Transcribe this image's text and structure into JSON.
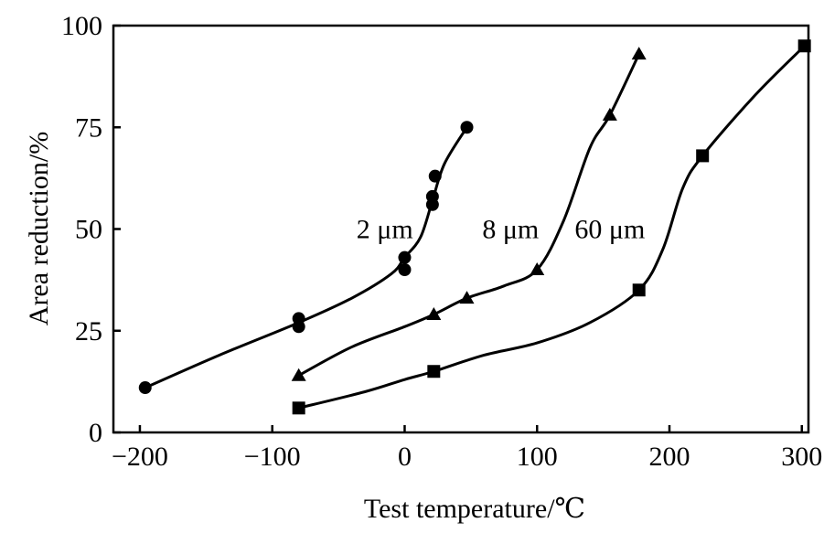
{
  "chart_data": {
    "type": "line",
    "title": "",
    "xlabel": "Test temperature/℃",
    "ylabel": "Area reduction/%",
    "xlim": [
      -220,
      305
    ],
    "ylim": [
      0,
      100
    ],
    "x_ticks": [
      -200,
      -100,
      0,
      100,
      200,
      300
    ],
    "x_tick_labels": [
      "−200",
      "−100",
      "0",
      "100",
      "200",
      "300"
    ],
    "y_ticks": [
      0,
      25,
      50,
      75,
      100
    ],
    "y_tick_labels": [
      "0",
      "25",
      "50",
      "75",
      "100"
    ],
    "grid": false,
    "legend": "none",
    "series": [
      {
        "name": "2 μm",
        "marker": "circle",
        "points": [
          [
            -196,
            11
          ],
          [
            -80,
            26
          ],
          [
            -80,
            28
          ],
          [
            0,
            40
          ],
          [
            0,
            43
          ],
          [
            21,
            56
          ],
          [
            21,
            58
          ],
          [
            23,
            63
          ],
          [
            47,
            75
          ]
        ],
        "curve": [
          [
            -196,
            11
          ],
          [
            -140,
            19
          ],
          [
            -80,
            27
          ],
          [
            -40,
            33
          ],
          [
            -10,
            39
          ],
          [
            0,
            43
          ],
          [
            12,
            48
          ],
          [
            21,
            57
          ],
          [
            30,
            66
          ],
          [
            47,
            75
          ]
        ]
      },
      {
        "name": "8 μm",
        "marker": "triangle",
        "points": [
          [
            -80,
            14
          ],
          [
            22,
            29
          ],
          [
            47,
            33
          ],
          [
            100,
            40
          ],
          [
            155,
            78
          ],
          [
            177,
            93
          ]
        ],
        "curve": [
          [
            -80,
            14
          ],
          [
            -40,
            21
          ],
          [
            0,
            26
          ],
          [
            22,
            29
          ],
          [
            47,
            33
          ],
          [
            75,
            36
          ],
          [
            100,
            40
          ],
          [
            120,
            52
          ],
          [
            140,
            70
          ],
          [
            155,
            78
          ],
          [
            177,
            93
          ]
        ]
      },
      {
        "name": "60 μm",
        "marker": "square",
        "points": [
          [
            -80,
            6
          ],
          [
            22,
            15
          ],
          [
            177,
            35
          ],
          [
            225,
            68
          ],
          [
            302,
            95
          ]
        ],
        "curve": [
          [
            -80,
            6
          ],
          [
            -30,
            10
          ],
          [
            0,
            13
          ],
          [
            22,
            15
          ],
          [
            60,
            19
          ],
          [
            100,
            22
          ],
          [
            140,
            27
          ],
          [
            177,
            35
          ],
          [
            195,
            45
          ],
          [
            210,
            60
          ],
          [
            225,
            68
          ],
          [
            265,
            83
          ],
          [
            302,
            95
          ]
        ]
      }
    ],
    "annotations": [
      {
        "text": "2 μm",
        "x": -15,
        "y": 50
      },
      {
        "text": "8 μm",
        "x": 80,
        "y": 50
      },
      {
        "text": "60 μm",
        "x": 155,
        "y": 50
      }
    ]
  }
}
